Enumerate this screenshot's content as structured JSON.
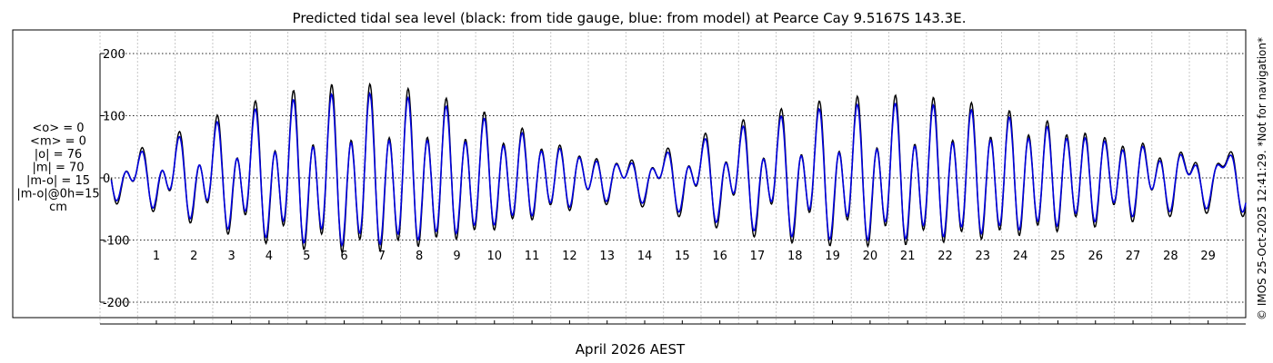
{
  "chart_data": {
    "type": "line",
    "title": "Predicted tidal sea level (black: from tide gauge, blue: from model) at Pearce Cay 9.5167S 143.3E.",
    "xlabel": "April 2026 AEST",
    "ylabel": "",
    "xlim": [
      0,
      30.5
    ],
    "ylim": [
      -235,
      235
    ],
    "x_ticks": [
      1,
      2,
      3,
      4,
      5,
      6,
      7,
      8,
      9,
      10,
      11,
      12,
      13,
      14,
      15,
      16,
      17,
      18,
      19,
      20,
      21,
      22,
      23,
      24,
      25,
      26,
      27,
      28,
      29
    ],
    "y_ticks": [
      -200,
      -100,
      0,
      100,
      200
    ],
    "y_tick_labels": [
      "-200",
      "-100",
      "0",
      "100",
      "200"
    ],
    "grid": true,
    "series": [
      {
        "name": "from tide gauge",
        "color": "#000000",
        "x_start": 0.3,
        "x_end": 30.5,
        "step": 0.02,
        "constituents": {
          "M2": 39,
          "S2": 61,
          "K1": 30,
          "O1": 19,
          "N2": 7
        }
      },
      {
        "name": "from model",
        "color": "#0000dd",
        "x_start": 0.3,
        "x_end": 30.5,
        "step": 0.02,
        "constituents": {
          "M2": 36,
          "S2": 55,
          "K1": 26,
          "O1": 17,
          "N2": 6
        }
      }
    ],
    "stats": [
      "<o> = 0",
      "<m> = 0",
      "|o| = 76",
      "|m| = 70",
      "|m-o| = 15",
      "|m-o|@0h=15",
      "cm"
    ],
    "side_note": "© IMOS 25-Oct-2025 12:41:29. *Not for navigation*"
  }
}
